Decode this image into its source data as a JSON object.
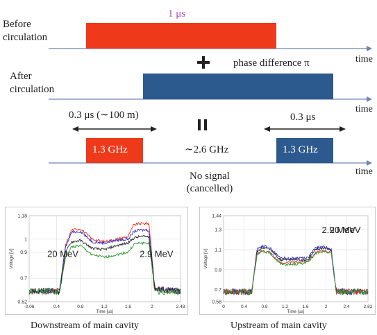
{
  "row1": {
    "label": "Before\ncirculation",
    "pulse_label": "1 μs",
    "axis_label": "time"
  },
  "row2": {
    "label": "After\ncirculation",
    "note": "phase difference π",
    "axis_label": "time",
    "plus": "+"
  },
  "row3": {
    "equals": "II",
    "left_span": "0.3 μs (∼100 m)",
    "right_span": "0.3 μs",
    "left_pulse": "1.3 GHz",
    "middle_text": "∼2.6 GHz",
    "right_pulse": "1.3 GHz",
    "no_signal": "No signal",
    "cancelled": "(cancelled)",
    "axis_label": "time"
  },
  "colors": {
    "red_pulse": "#ee3a1b",
    "blue_pulse": "#2d5a8e",
    "axis": "#6f84b5",
    "pink_text": "#b04ab5"
  },
  "chart_data": [
    {
      "type": "line",
      "title": "",
      "xlabel": "Time [us]",
      "ylabel": "Voltage [V]",
      "xlim": [
        -0.06,
        2.48
      ],
      "ylim": [
        0.52,
        1.18
      ],
      "xticks": [
        "-0.06",
        "0.4",
        "0.8",
        "1.2",
        "1.6",
        "2",
        "2.48"
      ],
      "xtick_values": [
        -0.06,
        0.4,
        0.8,
        1.2,
        1.6,
        2.0,
        2.48
      ],
      "yticks": [
        "1.18",
        "1",
        "0.9",
        "0.7",
        "0.52"
      ],
      "ytick_values": [
        1.18,
        1.0,
        0.9,
        0.7,
        0.52
      ],
      "annotations": [
        "20 MeV",
        "2.9 MeV"
      ],
      "caption": "Downstream of main cavity",
      "series": [
        {
          "color": "#e03030",
          "x": [
            -0.06,
            0.45,
            0.55,
            0.65,
            0.8,
            1.0,
            1.2,
            1.4,
            1.6,
            1.7,
            1.8,
            1.95,
            2.05,
            2.48
          ],
          "y": [
            0.6,
            0.6,
            0.95,
            1.07,
            1.08,
            1.0,
            0.98,
            1.0,
            1.02,
            1.11,
            1.12,
            1.12,
            0.62,
            0.6
          ]
        },
        {
          "color": "#2a2ac0",
          "x": [
            -0.06,
            0.45,
            0.55,
            0.65,
            0.8,
            1.0,
            1.2,
            1.4,
            1.6,
            1.7,
            1.8,
            1.95,
            2.05,
            2.48
          ],
          "y": [
            0.6,
            0.6,
            0.94,
            1.05,
            1.06,
            0.98,
            0.97,
            0.99,
            1.0,
            1.06,
            1.07,
            1.07,
            0.62,
            0.6
          ]
        },
        {
          "color": "#202020",
          "x": [
            -0.06,
            0.45,
            0.55,
            0.65,
            0.8,
            1.0,
            1.2,
            1.4,
            1.6,
            1.7,
            1.8,
            1.95,
            2.05,
            2.48
          ],
          "y": [
            0.6,
            0.6,
            0.9,
            0.98,
            0.99,
            0.93,
            0.92,
            0.95,
            0.97,
            1.01,
            1.02,
            1.02,
            0.62,
            0.6
          ]
        },
        {
          "color": "#2a9a2a",
          "x": [
            -0.06,
            0.45,
            0.55,
            0.65,
            0.8,
            1.0,
            1.2,
            1.4,
            1.6,
            1.7,
            1.8,
            1.95,
            2.05,
            2.48
          ],
          "y": [
            0.6,
            0.6,
            0.86,
            0.94,
            0.95,
            0.88,
            0.86,
            0.88,
            0.9,
            0.96,
            0.97,
            0.97,
            0.6,
            0.59
          ]
        }
      ]
    },
    {
      "type": "line",
      "title": "",
      "xlabel": "Time [us]",
      "ylabel": "Voltage [V]",
      "xlim": [
        0,
        2.82
      ],
      "ylim": [
        0.58,
        1.44
      ],
      "xticks": [
        "0",
        "0.4",
        "0.8",
        "1.2",
        "1.6",
        "2",
        "2.4",
        "2.82"
      ],
      "xtick_values": [
        0,
        0.4,
        0.8,
        1.2,
        1.6,
        2.0,
        2.4,
        2.82
      ],
      "yticks": [
        "1.44",
        "1.3",
        "1.1",
        "0.9",
        "0.7",
        "0.58"
      ],
      "ytick_values": [
        1.44,
        1.3,
        1.1,
        0.9,
        0.7,
        0.58
      ],
      "annotations": [
        "2.9 MeV",
        "20 MeV"
      ],
      "caption": "Upstream of main cavity",
      "series": [
        {
          "color": "#202020",
          "x": [
            0,
            0.55,
            0.65,
            0.75,
            0.9,
            1.1,
            1.3,
            1.5,
            1.65,
            1.8,
            1.95,
            2.1,
            2.2,
            2.82
          ],
          "y": [
            0.68,
            0.68,
            1.08,
            1.12,
            1.11,
            1.0,
            1.0,
            1.0,
            1.0,
            1.1,
            1.12,
            1.1,
            0.68,
            0.68
          ]
        },
        {
          "color": "#2a2ac0",
          "x": [
            0,
            0.55,
            0.65,
            0.75,
            0.9,
            1.1,
            1.3,
            1.5,
            1.65,
            1.8,
            1.95,
            2.1,
            2.2,
            2.82
          ],
          "y": [
            0.68,
            0.68,
            1.1,
            1.14,
            1.12,
            1.02,
            1.01,
            1.02,
            1.02,
            1.12,
            1.13,
            1.11,
            0.68,
            0.68
          ]
        },
        {
          "color": "#e03030",
          "x": [
            0,
            0.55,
            0.65,
            0.75,
            0.9,
            1.1,
            1.3,
            1.5,
            1.65,
            1.8,
            1.95,
            2.1,
            2.2,
            2.82
          ],
          "y": [
            0.68,
            0.68,
            1.05,
            1.09,
            1.08,
            0.97,
            0.97,
            0.98,
            0.99,
            1.07,
            1.09,
            1.08,
            0.68,
            0.68
          ]
        },
        {
          "color": "#2a9a2a",
          "x": [
            0,
            0.55,
            0.65,
            0.75,
            0.9,
            1.1,
            1.3,
            1.5,
            1.65,
            1.8,
            1.95,
            2.1,
            2.2,
            2.82
          ],
          "y": [
            0.68,
            0.68,
            1.04,
            1.08,
            1.07,
            0.96,
            0.95,
            0.96,
            0.98,
            1.06,
            1.08,
            1.07,
            0.68,
            0.68
          ]
        }
      ]
    }
  ]
}
